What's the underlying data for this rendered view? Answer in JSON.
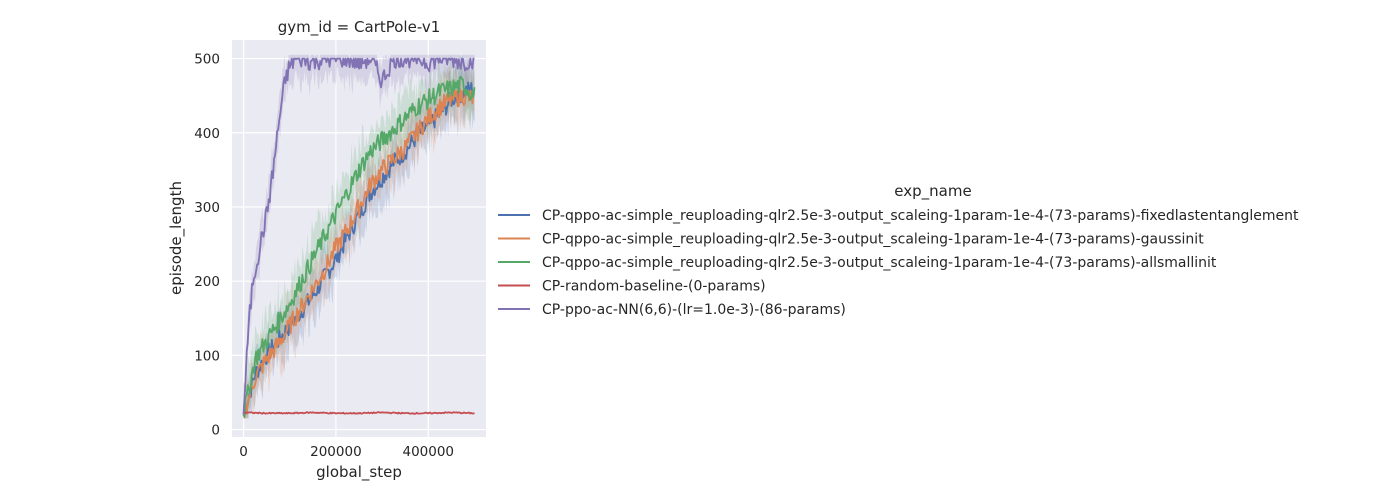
{
  "chart_data": {
    "type": "line",
    "title": "gym_id = CartPole-v1",
    "xlabel": "global_step",
    "ylabel": "episode_length",
    "xlim": [
      -25000,
      525000
    ],
    "ylim": [
      -10,
      525
    ],
    "xticks": [
      0,
      200000,
      400000
    ],
    "yticks": [
      0,
      100,
      200,
      300,
      400,
      500
    ],
    "grid": true,
    "legend_title": "exp_name",
    "legend_position": "right",
    "series": [
      {
        "name": "CP-qppo-ac-simple_reuploading-qlr2.5e-3-output_scaleing-1param-1e-4-(73-params)-fixedlastentanglement",
        "color": "#4c72b0",
        "x": [
          0,
          25000,
          50000,
          75000,
          100000,
          125000,
          150000,
          175000,
          200000,
          225000,
          250000,
          275000,
          300000,
          325000,
          350000,
          375000,
          400000,
          425000,
          450000,
          475000,
          500000
        ],
        "y": [
          20,
          75,
          100,
          120,
          140,
          160,
          180,
          205,
          230,
          260,
          290,
          320,
          340,
          360,
          375,
          395,
          410,
          425,
          445,
          455,
          460
        ]
      },
      {
        "name": "CP-qppo-ac-simple_reuploading-qlr2.5e-3-output_scaleing-1param-1e-4-(73-params)-gaussinit",
        "color": "#dd8452",
        "x": [
          0,
          25000,
          50000,
          75000,
          100000,
          125000,
          150000,
          175000,
          200000,
          225000,
          250000,
          275000,
          300000,
          325000,
          350000,
          375000,
          400000,
          425000,
          450000,
          475000,
          500000
        ],
        "y": [
          20,
          70,
          95,
          115,
          140,
          165,
          190,
          215,
          245,
          270,
          300,
          330,
          350,
          365,
          380,
          400,
          420,
          435,
          445,
          450,
          445
        ]
      },
      {
        "name": "CP-qppo-ac-simple_reuploading-qlr2.5e-3-output_scaleing-1param-1e-4-(73-params)-allsmallinit",
        "color": "#55a868",
        "x": [
          0,
          25000,
          50000,
          75000,
          100000,
          125000,
          150000,
          175000,
          200000,
          225000,
          250000,
          275000,
          300000,
          325000,
          350000,
          375000,
          400000,
          425000,
          450000,
          475000,
          500000
        ],
        "y": [
          20,
          95,
          120,
          145,
          170,
          200,
          230,
          260,
          290,
          320,
          350,
          375,
          390,
          405,
          420,
          435,
          445,
          455,
          460,
          465,
          450
        ]
      },
      {
        "name": "CP-random-baseline-(0-params)",
        "color": "#c44e52",
        "x": [
          0,
          50000,
          100000,
          150000,
          200000,
          250000,
          300000,
          350000,
          400000,
          450000,
          500000
        ],
        "y": [
          23,
          22,
          22,
          23,
          22,
          22,
          23,
          22,
          22,
          23,
          22
        ]
      },
      {
        "name": "CP-ppo-ac-NN(6,6)-(lr=1.0e-3)-(86-params)",
        "color": "#8172b3",
        "x": [
          0,
          10000,
          20000,
          30000,
          40000,
          50000,
          60000,
          70000,
          80000,
          90000,
          100000,
          110000,
          125000,
          150000,
          175000,
          200000,
          225000,
          250000,
          275000,
          300000,
          325000,
          350000,
          375000,
          400000,
          425000,
          450000,
          475000,
          500000
        ],
        "y": [
          20,
          130,
          200,
          230,
          260,
          290,
          330,
          380,
          430,
          470,
          490,
          498,
          500,
          495,
          500,
          500,
          500,
          495,
          500,
          470,
          500,
          500,
          500,
          495,
          500,
          500,
          495,
          500
        ]
      }
    ]
  }
}
